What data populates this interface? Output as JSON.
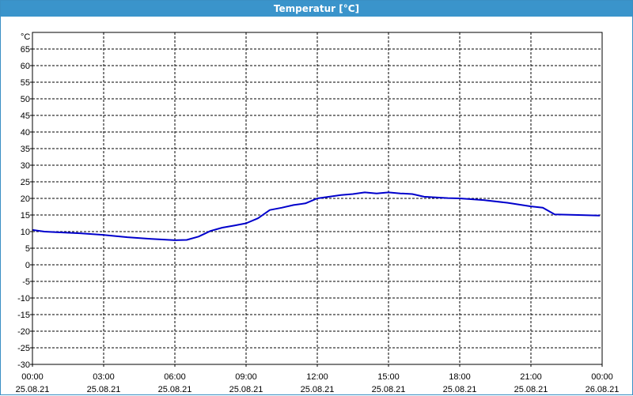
{
  "window": {
    "title": "Temperatur [°C]"
  },
  "chart_data": {
    "type": "line",
    "title": "Temperatur [°C]",
    "ylabel": "°C",
    "xlabel": "",
    "ylim": [
      -30,
      70
    ],
    "grid": true,
    "y_ticks": [
      "65",
      "60",
      "55",
      "50",
      "45",
      "40",
      "35",
      "30",
      "25",
      "20",
      "15",
      "10",
      "5",
      "0",
      "-5",
      "-10",
      "-15",
      "-20",
      "-25",
      "-30"
    ],
    "y_tick_values": [
      65,
      60,
      55,
      50,
      45,
      40,
      35,
      30,
      25,
      20,
      15,
      10,
      5,
      0,
      -5,
      -10,
      -15,
      -20,
      -25,
      -30
    ],
    "x_ticks": [
      {
        "time": "00:00",
        "date": "25.08.21",
        "hours": 0
      },
      {
        "time": "03:00",
        "date": "25.08.21",
        "hours": 3
      },
      {
        "time": "06:00",
        "date": "25.08.21",
        "hours": 6
      },
      {
        "time": "09:00",
        "date": "25.08.21",
        "hours": 9
      },
      {
        "time": "12:00",
        "date": "25.08.21",
        "hours": 12
      },
      {
        "time": "15:00",
        "date": "25.08.21",
        "hours": 15
      },
      {
        "time": "18:00",
        "date": "25.08.21",
        "hours": 18
      },
      {
        "time": "21:00",
        "date": "25.08.21",
        "hours": 21
      },
      {
        "time": "00:00",
        "date": "26.08.21",
        "hours": 24
      }
    ],
    "series": [
      {
        "color": "#0000cc",
        "x_hours": [
          0,
          0.5,
          1,
          2,
          3,
          4,
          5,
          6,
          6.5,
          7,
          7.5,
          8,
          8.5,
          9,
          9.5,
          10,
          10.5,
          11,
          11.5,
          12,
          12.5,
          13,
          13.5,
          14,
          14.5,
          15,
          15.5,
          16,
          16.5,
          17,
          17.5,
          18,
          19,
          20,
          21,
          21.5,
          22,
          23,
          23.9
        ],
        "values": [
          10.5,
          10,
          9.8,
          9.5,
          9,
          8.3,
          7.8,
          7.4,
          7.5,
          8.5,
          10.2,
          11.2,
          11.8,
          12.5,
          14,
          16.5,
          17.2,
          18,
          18.5,
          20,
          20.5,
          21,
          21.3,
          21.8,
          21.5,
          21.8,
          21.5,
          21.3,
          20.5,
          20.3,
          20.1,
          20,
          19.5,
          18.7,
          17.6,
          17.2,
          15.2,
          15,
          14.8
        ]
      }
    ]
  }
}
